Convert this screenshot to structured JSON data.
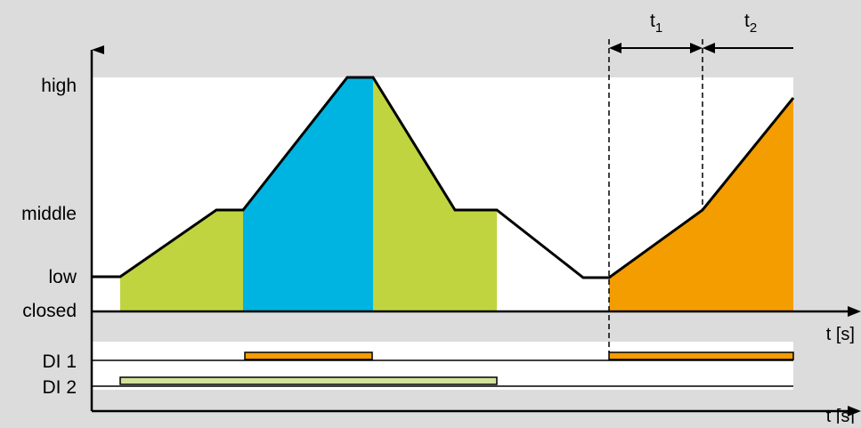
{
  "diagram": {
    "colors": {
      "background": "#dcdcdc",
      "plot_area": "#ffffff",
      "green": "#c0d43f",
      "blue": "#00b4e1",
      "orange": "#f49d00",
      "di2_bar": "#d2e29a",
      "line": "#000000"
    },
    "y_labels": {
      "high": "high",
      "middle": "middle",
      "low": "low",
      "closed": "closed"
    },
    "x_axis_label": "t [s]",
    "x_axis_label_bottom": "t [s]",
    "di_labels": {
      "di1": "DI 1",
      "di2": "DI 2"
    },
    "interval_labels": {
      "t1_base": "t",
      "t1_sub": "1",
      "t2_base": "t",
      "t2_sub": "2"
    }
  }
}
